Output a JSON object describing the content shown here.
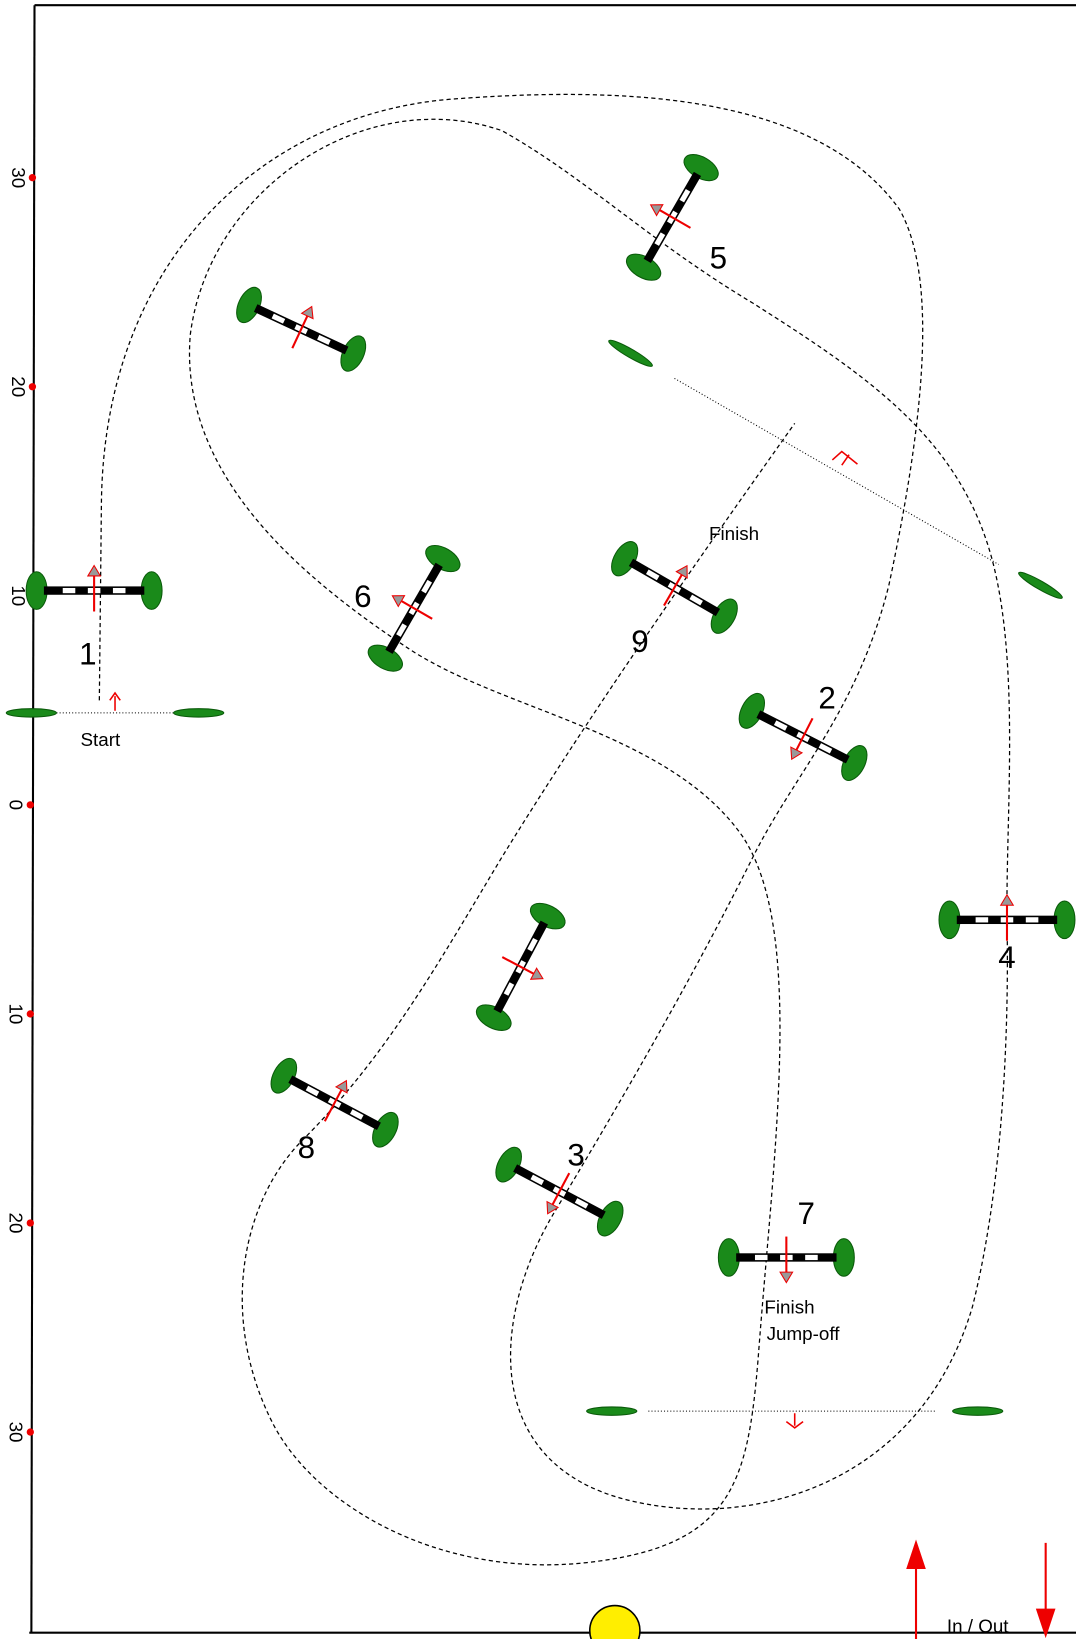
{
  "axis_labels": [
    "30",
    "20",
    "10",
    "0",
    "10",
    "20",
    "30"
  ],
  "fence_numbers": [
    "1",
    "2",
    "3",
    "4",
    "5",
    "6",
    "7",
    "8",
    "9"
  ],
  "labels": {
    "start": "Start",
    "finish": "Finish",
    "finish_jumpoff": [
      "Finish",
      "Jump-off"
    ],
    "gate": "In / Out"
  }
}
